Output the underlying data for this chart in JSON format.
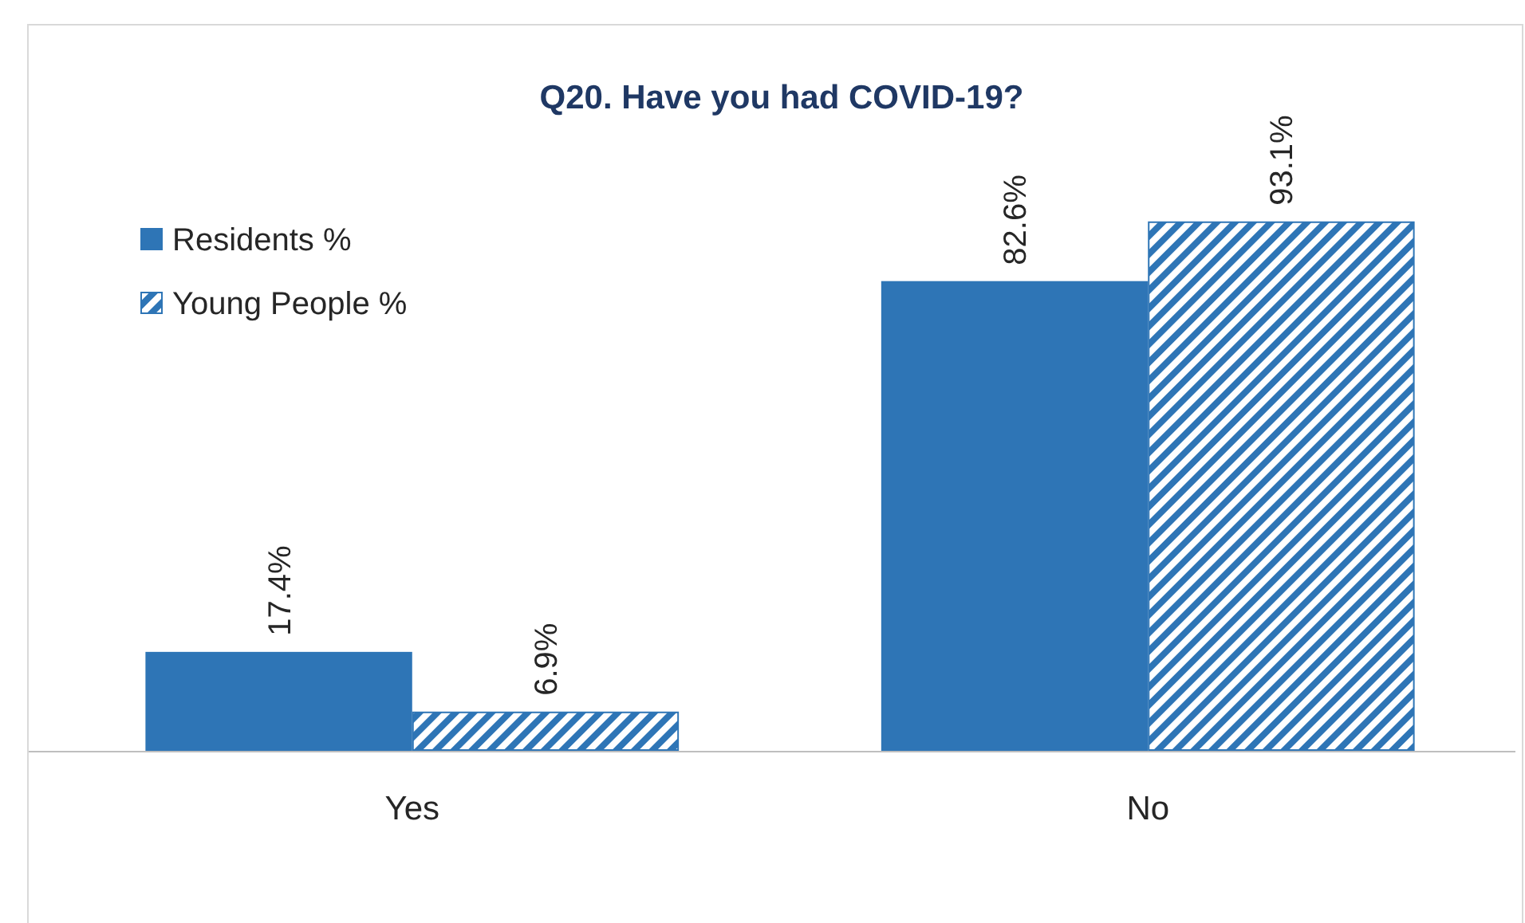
{
  "chart_data": {
    "type": "bar",
    "title": "Q20. Have you had COVID-19?",
    "categories": [
      "Yes",
      "No"
    ],
    "series": [
      {
        "name": "Residents %",
        "color": "#2e75b6",
        "values": [
          17.4,
          82.6
        ],
        "value_labels": [
          "17.4%",
          "82.6%"
        ]
      },
      {
        "name": "Young People %",
        "color": "#2e75b6",
        "values": [
          6.9,
          93.1
        ],
        "value_labels": [
          "6.9%",
          "93.1%"
        ]
      }
    ],
    "legend": "top left"
  }
}
